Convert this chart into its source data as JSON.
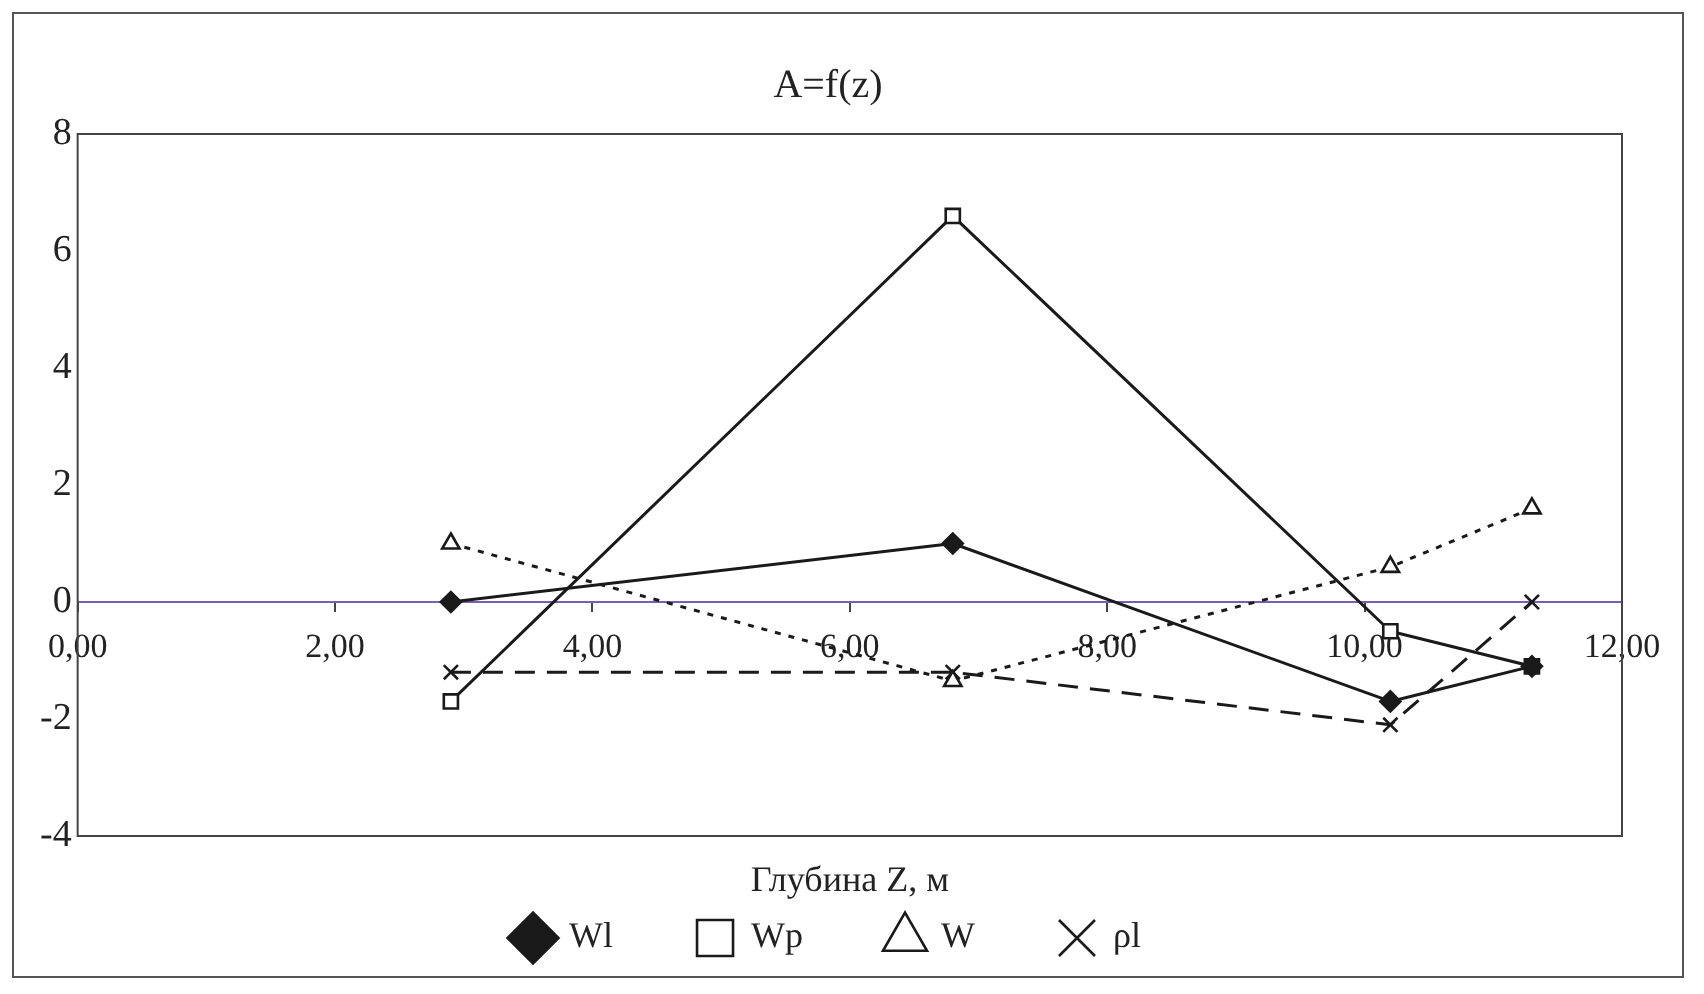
{
  "chart_data": {
    "type": "line",
    "title": "A=f(z)",
    "xlabel": "Глубина Z, м",
    "x": [
      2.9,
      6.8,
      10.2,
      11.3
    ],
    "xlim": [
      0,
      12
    ],
    "xticks": [
      {
        "value": 0,
        "label": "0,00"
      },
      {
        "value": 2,
        "label": "2,00"
      },
      {
        "value": 4,
        "label": "4,00"
      },
      {
        "value": 6,
        "label": "6,00"
      },
      {
        "value": 8,
        "label": "8,00"
      },
      {
        "value": 10,
        "label": "10,00"
      },
      {
        "value": 12,
        "label": "12,00"
      }
    ],
    "ylim": [
      -4,
      8
    ],
    "yticks": [
      -4,
      -2,
      0,
      2,
      4,
      6,
      8
    ],
    "series": [
      {
        "name": "Wl",
        "color": "#1a1a1a",
        "values": [
          0,
          1.0,
          -1.7,
          -1.1
        ],
        "marker": "diamond",
        "line_style": "solid"
      },
      {
        "name": "Wp",
        "color": "#1a1a1a",
        "values": [
          -1.7,
          6.6,
          -0.5,
          -1.1
        ],
        "marker": "square",
        "line_style": "solid"
      },
      {
        "name": "W",
        "color": "#1a1a1a",
        "values": [
          1.0,
          -1.35,
          0.6,
          1.6
        ],
        "marker": "triangle",
        "line_style": "dotted"
      },
      {
        "name": "ρl",
        "color": "#1a1a1a",
        "values": [
          -1.2,
          -1.2,
          -2.1,
          0
        ],
        "marker": "cross",
        "line_style": "dashed"
      }
    ],
    "grid": false,
    "legend": "bottom"
  }
}
